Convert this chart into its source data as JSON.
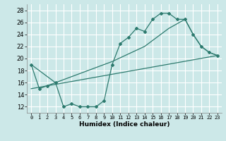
{
  "xlabel": "Humidex (Indice chaleur)",
  "ylabel": "",
  "xlim": [
    -0.5,
    23.5
  ],
  "ylim": [
    11,
    29
  ],
  "yticks": [
    12,
    14,
    16,
    18,
    20,
    22,
    24,
    26,
    28
  ],
  "xticks": [
    0,
    1,
    2,
    3,
    4,
    5,
    6,
    7,
    8,
    9,
    10,
    11,
    12,
    13,
    14,
    15,
    16,
    17,
    18,
    19,
    20,
    21,
    22,
    23
  ],
  "bg_color": "#cce8e8",
  "line_color": "#2d7a6e",
  "grid_color": "#ffffff",
  "line1_x": [
    0,
    1,
    2,
    3,
    4,
    5,
    6,
    7,
    8,
    9,
    10,
    11,
    12,
    13,
    14,
    15,
    16,
    17,
    18,
    19,
    20,
    21,
    22,
    23
  ],
  "line1_y": [
    19,
    15,
    15.5,
    16,
    12,
    12.5,
    12,
    12,
    12,
    13,
    19,
    22.5,
    23.5,
    25,
    24.5,
    26.5,
    27.5,
    27.5,
    26.5,
    26.5,
    24,
    22,
    21,
    20.5
  ],
  "line2_x": [
    0,
    3,
    10,
    14,
    17,
    19,
    20,
    21,
    22,
    23
  ],
  "line2_y": [
    19,
    16,
    19.5,
    22,
    25,
    26.5,
    24,
    22,
    21,
    20.5
  ],
  "line3_x": [
    0,
    23
  ],
  "line3_y": [
    15,
    20.5
  ]
}
